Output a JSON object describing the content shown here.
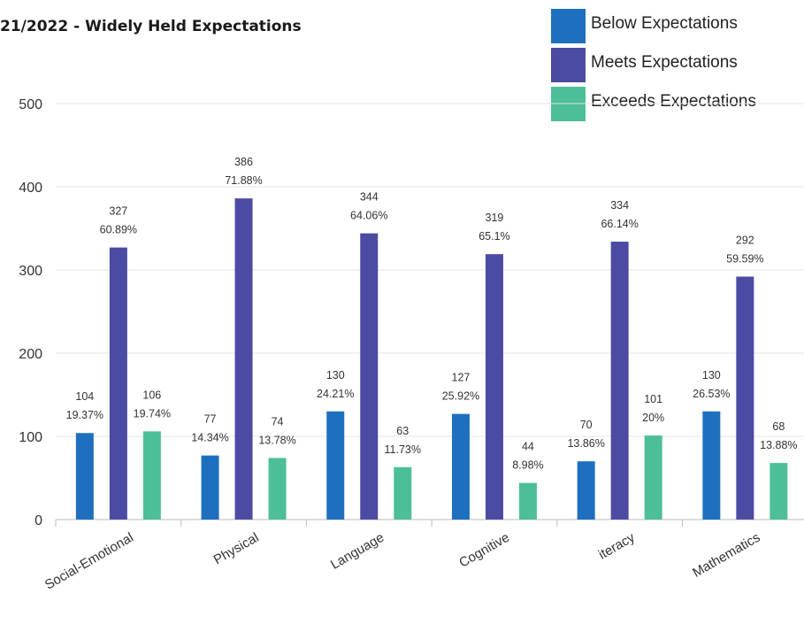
{
  "chart_data": {
    "type": "bar",
    "title": "21/2022 - Widely Held Expectations",
    "categories": [
      "Social-Emotional",
      "Physical",
      "Language",
      "Cognitive",
      "iteracy",
      "Mathematics"
    ],
    "series": [
      {
        "name": "Below Expectations",
        "color": "#1f6fbf",
        "values": [
          104,
          77,
          130,
          127,
          70,
          130
        ],
        "percents": [
          "19.37%",
          "14.34%",
          "24.21%",
          "25.92%",
          "13.86%",
          "26.53%"
        ]
      },
      {
        "name": "Meets Expectations",
        "color": "#4b4ba3",
        "values": [
          327,
          386,
          344,
          319,
          334,
          292
        ],
        "percents": [
          "60.89%",
          "71.88%",
          "64.06%",
          "65.1%",
          "66.14%",
          "59.59%"
        ]
      },
      {
        "name": "Exceeds Expectations",
        "color": "#4dbf98",
        "values": [
          106,
          74,
          63,
          44,
          101,
          68
        ],
        "percents": [
          "19.74%",
          "13.78%",
          "11.73%",
          "8.98%",
          "20%",
          "13.88%"
        ]
      }
    ],
    "ylim": [
      0,
      500
    ],
    "yticks": [
      0,
      100,
      200,
      300,
      400,
      500
    ],
    "grid": true,
    "legend_position": "top-right"
  }
}
